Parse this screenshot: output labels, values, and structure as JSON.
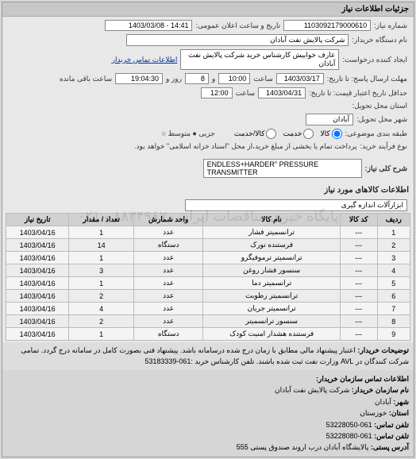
{
  "panel": {
    "title": "جزئیات اطلاعات نیاز"
  },
  "header": {
    "req_no_label": "شماره نیاز:",
    "req_no": "1103092179000610",
    "ann_date_label": "تاریخ و ساعت اعلان عمومی:",
    "ann_date": "14:41 - 1403/03/08",
    "buyer_label": "نام دستگاه خریدار:",
    "buyer": "شرکت پالایش نفت آبادان",
    "creator_label": "ایجاد کننده درخواست:",
    "creator": "عارف خوابیش کارشناس خرید شرکت پالایش نفت آبادان",
    "contact_label": "اطلاعات تماس خریدار",
    "deadline_label": "مهلت ارسال پاسخ: تا تاریخ:",
    "deadline_date": "1403/03/17",
    "time_label": "ساعت",
    "deadline_time": "10:00",
    "and_label": "و",
    "days": "8",
    "day_label": "روز و",
    "remain_time": "19:04:30",
    "remain_label": "ساعت باقی مانده",
    "validity_label": "حداقل تاریخ اعتبار قیمت: تا تاریخ:",
    "validity_date": "1403/04/31",
    "validity_time": "12:00",
    "province_label": "استان محل تحویل:",
    "city_label": "شهر محل تحویل:",
    "city": "آبادان",
    "class_label": "طبقه بندی موضوعی:",
    "class_opts": [
      "کالا",
      "خدمت",
      "کالا/خدمت"
    ],
    "size_label": "جزیی ●  متوسط ○",
    "proc_label": "نوع فرآیند خرید:",
    "proc_text": "پرداخت تمام یا بخشی از مبلغ خرید،از محل \"اسناد خزانه اسلامی\" خواهد بود.",
    "desc_label": "شرح کلی نیاز:",
    "desc": "ENDLESS+HARDER\" PRESSURE TRANSMITTER"
  },
  "items": {
    "section_title": "اطلاعات کالاهای مورد نیاز",
    "cat_label": "",
    "cat": "ابزارآلات اندازه گیری",
    "columns": [
      "ردیف",
      "کد کالا",
      "نام کالا",
      "واحد شمارش",
      "تعداد / مقدار",
      "تاریخ نیاز"
    ],
    "rows": [
      [
        "1",
        "---",
        "ترانسمیتر فشار",
        "عدد",
        "1",
        "1403/04/16"
      ],
      [
        "2",
        "---",
        "فرستنده تورک",
        "دستگاه",
        "14",
        "1403/04/16"
      ],
      [
        "3",
        "---",
        "ترانسمیتر ترموفیگرو",
        "عدد",
        "1",
        "1403/04/16"
      ],
      [
        "4",
        "---",
        "سنسور فشار روغن",
        "عدد",
        "3",
        "1403/04/16"
      ],
      [
        "5",
        "---",
        "ترانسمیتر دما",
        "عدد",
        "1",
        "1403/04/16"
      ],
      [
        "6",
        "---",
        "ترانسمیتر رطوبت",
        "عدد",
        "2",
        "1403/04/16"
      ],
      [
        "7",
        "---",
        "ترانسمیتر جریان",
        "عدد",
        "4",
        "1403/04/16"
      ],
      [
        "8",
        "---",
        "سنسور ترانسمیتر",
        "عدد",
        "2",
        "1403/04/16"
      ],
      [
        "9",
        "---",
        "فرستنده هشدار امنیت کودک",
        "دستگاه",
        "1",
        "1403/04/16"
      ]
    ]
  },
  "notes": {
    "label": "توضیحات خریدار:",
    "text": "اعتبار پیشنهاد مالی مطابق با زمان درج شده درسامانه باشد. پیشنهاد فنی بصورت کامل در سامانه درج گردد. تمامی شرکت کنندگان در AVL وزارت نفت ثبت شده باشند. تلفن کارشناس خرید :061-53183339"
  },
  "contact": {
    "title": "اطلاعات تماس سازمان خریدار:",
    "org_label": "نام سازمان خریدار:",
    "org": "شرکت پالایش نفت آبادان",
    "city_label": "شهر:",
    "city": "آبادان",
    "province_label": "استان:",
    "province": "خوزستان",
    "phone_label": "تلفن تماس:",
    "phone": "061-53228050",
    "fax_label": "تلفن تماس:",
    "fax": "061-53228080",
    "addr_label": "آدرس پستی:",
    "addr": "پالایشگاه آبادان درب اروند صندوق پستی 555"
  },
  "watermark": "پایگاه خبری مناقصات ایران ۸۸۳۴۹۶۷۰ - ۰۲۱",
  "colors": {
    "bg": "#d8d8d8",
    "panel": "#e8e8e8",
    "header": "#c8c8c8",
    "th": "#d0d0d0",
    "border": "#999"
  }
}
